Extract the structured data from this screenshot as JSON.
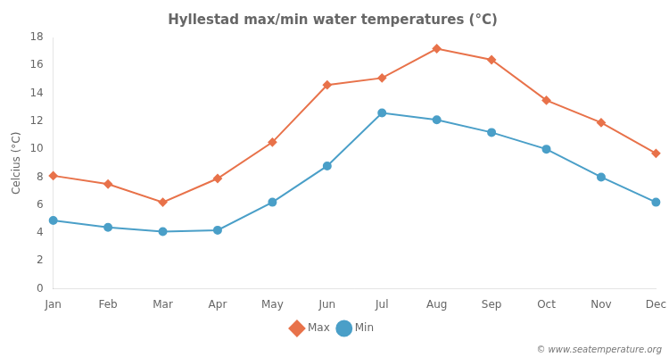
{
  "chart_data": {
    "type": "line",
    "title": "Hyllestad max/min water temperatures (°C)",
    "ylabel": "Celcius (°C)",
    "categories": [
      "Jan",
      "Feb",
      "Mar",
      "Apr",
      "May",
      "Jun",
      "Jul",
      "Aug",
      "Sep",
      "Oct",
      "Nov",
      "Dec"
    ],
    "series": [
      {
        "name": "Max",
        "color": "#e8724a",
        "marker": "diamond",
        "values": [
          8.1,
          7.5,
          6.2,
          7.9,
          10.5,
          14.6,
          15.1,
          17.2,
          16.4,
          13.5,
          11.9,
          9.7
        ]
      },
      {
        "name": "Min",
        "color": "#4a9fc8",
        "marker": "circle",
        "values": [
          4.9,
          4.4,
          4.1,
          4.2,
          6.2,
          8.8,
          12.6,
          12.1,
          11.2,
          10.0,
          8.0,
          6.2
        ]
      }
    ],
    "ylim": [
      0,
      18
    ],
    "yticks": [
      0,
      2,
      4,
      6,
      8,
      10,
      12,
      14,
      16,
      18
    ],
    "grid": false,
    "legend": "bottom",
    "annotations": [
      "© www.seatemperature.org"
    ]
  }
}
